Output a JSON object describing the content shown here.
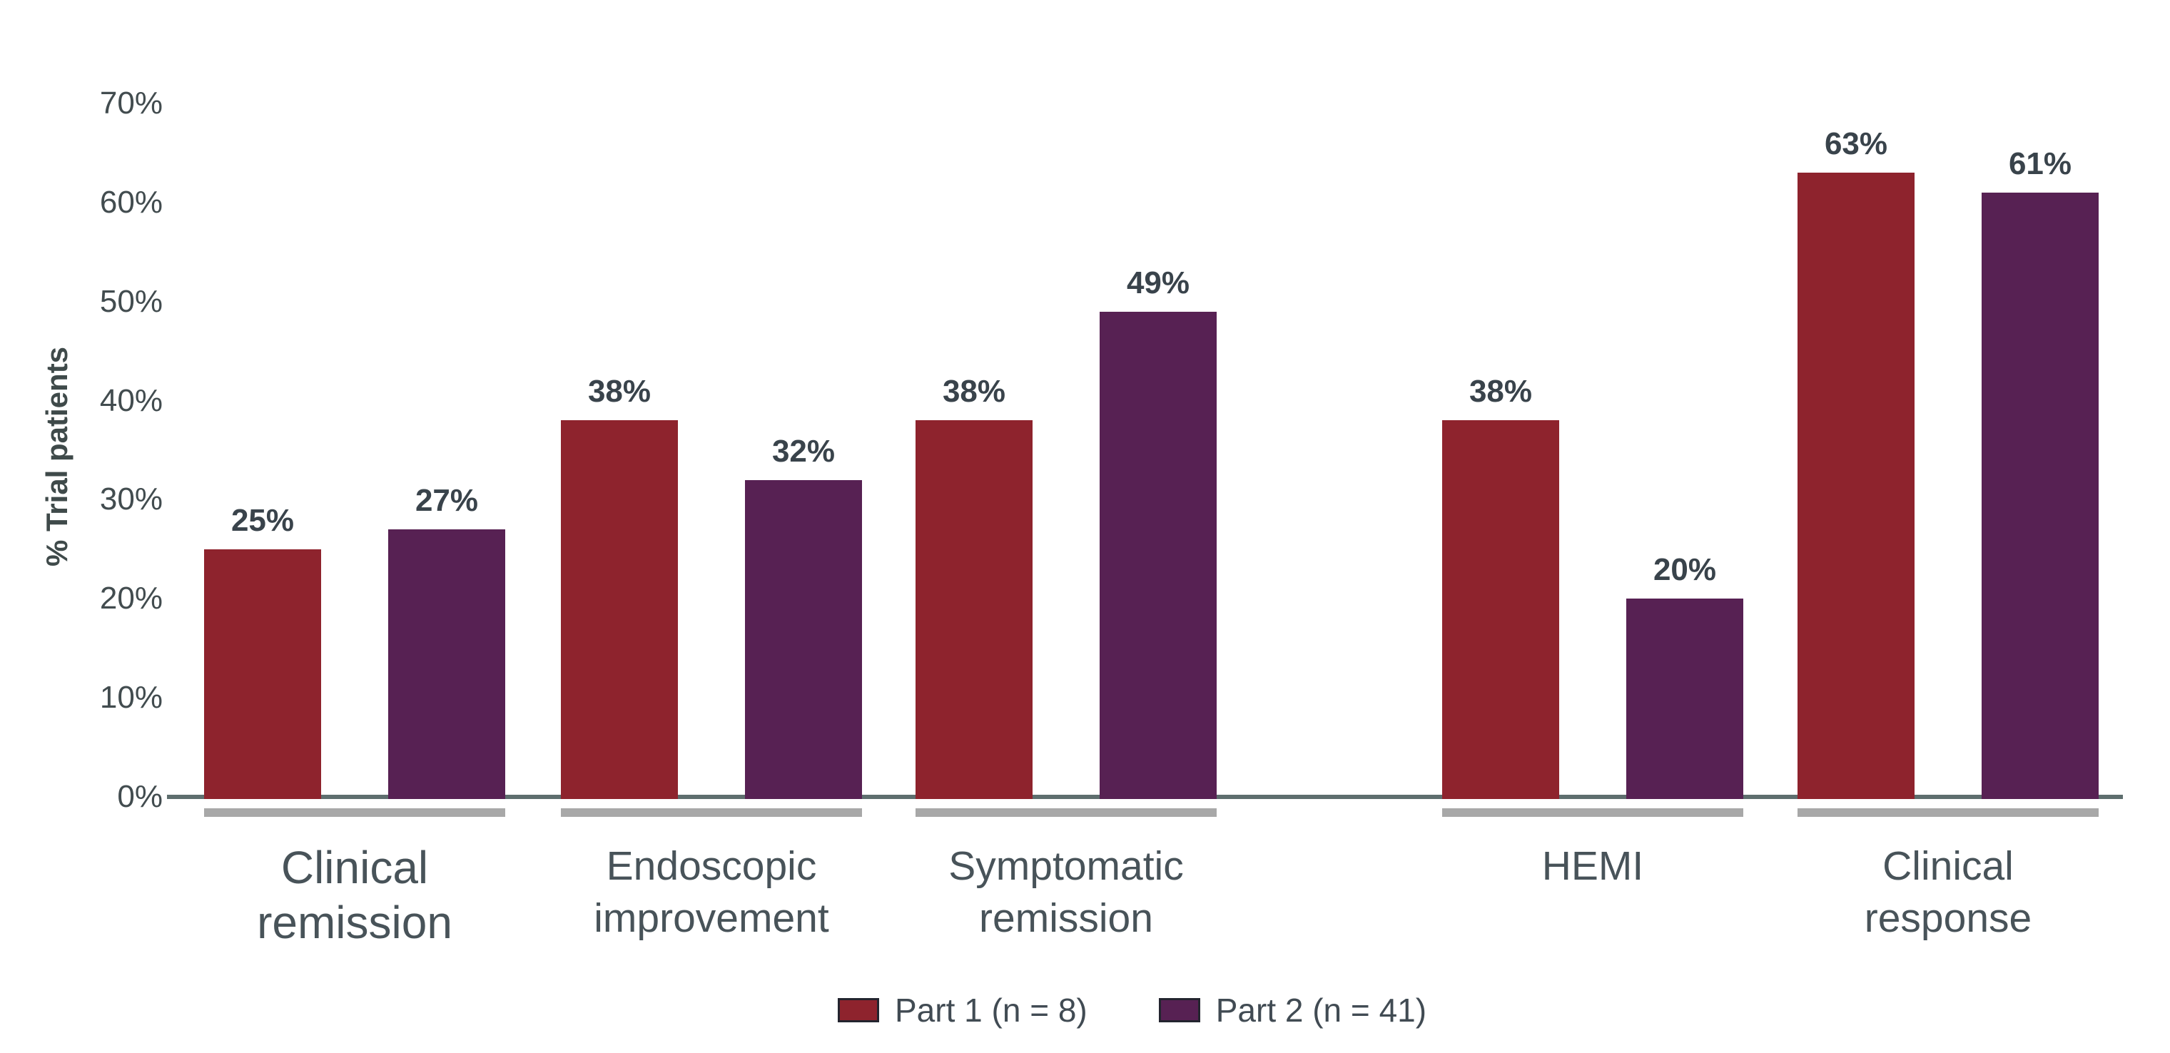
{
  "chart_data": {
    "type": "bar",
    "title": "",
    "ylabel": "% Trial patients",
    "xlabel": "",
    "ylim": [
      0,
      70
    ],
    "ytick_labels": [
      "0%",
      "10%",
      "20%",
      "30%",
      "40%",
      "50%",
      "60%",
      "70%"
    ],
    "ytick_values": [
      0,
      10,
      20,
      30,
      40,
      50,
      60,
      70
    ],
    "categories": [
      "Clinical remission",
      "Endoscopic improvement",
      "Symptomatic remission",
      "HEMI",
      "Clinical response"
    ],
    "category_lines": [
      [
        "Clinical",
        "remission"
      ],
      [
        "Endoscopic",
        "improvement"
      ],
      [
        "Symptomatic",
        "remission"
      ],
      [
        "HEMI"
      ],
      [
        "Clinical",
        "response"
      ]
    ],
    "series": [
      {
        "name": "Part 1 (n = 8)",
        "color": "#8E232D",
        "values": [
          25,
          38,
          38,
          38,
          63
        ],
        "labels": [
          "25%",
          "38%",
          "38%",
          "38%",
          "63%"
        ]
      },
      {
        "name": "Part 2 (n = 41)",
        "color": "#572153",
        "values": [
          27,
          32,
          49,
          20,
          61
        ],
        "labels": [
          "27%",
          "32%",
          "49%",
          "20%",
          "61%"
        ]
      }
    ],
    "legend_position": "bottom",
    "grid": false,
    "colors": {
      "background": "#FFFFFF",
      "axis_line": "#5E6E6E",
      "category_underline": "#A8A8A8",
      "value_label_text": "#39434B",
      "tick_text": "#424C4F",
      "category_text": "#485359",
      "legend_swatch_border": "#23252F",
      "y_title_text": "#3F4A4A"
    }
  }
}
